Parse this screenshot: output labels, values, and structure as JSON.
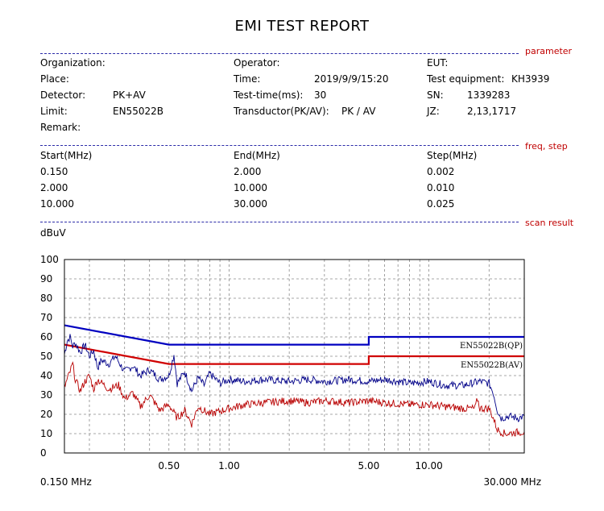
{
  "title": "EMI TEST REPORT",
  "sections": {
    "parameter": "parameter",
    "freq_step": "freq, step",
    "scan_result": "scan result"
  },
  "params": {
    "organization_label": "Organization:",
    "organization": "",
    "place_label": "Place:",
    "place": "",
    "detector_label": "Detector:",
    "detector": "PK+AV",
    "limit_label": "Limit:",
    "limit": "EN55022B",
    "remark_label": "Remark:",
    "remark": "",
    "operator_label": "Operator:",
    "operator": "",
    "time_label": "Time:",
    "time": "2019/9/9/15:20",
    "test_time_label": "Test-time(ms):",
    "test_time": "30",
    "transductor_label": "Transductor(PK/AV):",
    "transductor": "PK  /  AV",
    "eut_label": "EUT:",
    "eut": "",
    "equipment_label": "Test equipment:",
    "equipment": "KH3939",
    "sn_label": "SN:",
    "sn": "1339283",
    "jz_label": "JZ:",
    "jz": "2,13,1717"
  },
  "freq_table": {
    "headers": [
      "Start(MHz)",
      "End(MHz)",
      "Step(MHz)"
    ],
    "rows": [
      [
        "0.150",
        "2.000",
        "0.002"
      ],
      [
        "2.000",
        "10.000",
        "0.010"
      ],
      [
        "10.000",
        "30.000",
        "0.025"
      ]
    ]
  },
  "chart_data": {
    "type": "line",
    "ylabel": "dBuV",
    "ylim": [
      0,
      100
    ],
    "yticks": [
      "0",
      "10",
      "20",
      "30",
      "40",
      "50",
      "60",
      "70",
      "80",
      "90",
      "100"
    ],
    "xscale": "log",
    "xlim": [
      0.15,
      30
    ],
    "xtick_labels": [
      {
        "v": 0.5,
        "t": "0.50"
      },
      {
        "v": 1,
        "t": "1.00"
      },
      {
        "v": 5,
        "t": "5.00"
      },
      {
        "v": 10,
        "t": "10.00"
      }
    ],
    "x_start_label": "0.150 MHz",
    "x_end_label": "30.000 MHz",
    "grid": true,
    "colors": {
      "qp_limit": "#0000c0",
      "av_limit": "#d00000",
      "pk_trace": "#000088",
      "av_trace": "#b80000"
    },
    "limits": [
      {
        "name": "EN55022B(QP)",
        "points": [
          [
            0.15,
            66
          ],
          [
            0.5,
            56
          ],
          [
            5,
            56
          ],
          [
            5,
            60
          ],
          [
            30,
            60
          ]
        ]
      },
      {
        "name": "EN55022B(AV)",
        "points": [
          [
            0.15,
            56
          ],
          [
            0.5,
            46
          ],
          [
            5,
            46
          ],
          [
            5,
            50
          ],
          [
            30,
            50
          ]
        ]
      }
    ],
    "traces": [
      {
        "name": "PK",
        "points": [
          [
            0.15,
            51
          ],
          [
            0.155,
            58
          ],
          [
            0.16,
            60
          ],
          [
            0.165,
            55
          ],
          [
            0.17,
            57
          ],
          [
            0.18,
            52
          ],
          [
            0.19,
            56
          ],
          [
            0.2,
            50
          ],
          [
            0.21,
            53
          ],
          [
            0.22,
            44
          ],
          [
            0.23,
            48
          ],
          [
            0.25,
            46
          ],
          [
            0.27,
            50
          ],
          [
            0.3,
            42
          ],
          [
            0.33,
            45
          ],
          [
            0.36,
            40
          ],
          [
            0.4,
            43
          ],
          [
            0.45,
            38
          ],
          [
            0.5,
            40
          ],
          [
            0.53,
            51
          ],
          [
            0.55,
            36
          ],
          [
            0.6,
            42
          ],
          [
            0.65,
            32
          ],
          [
            0.7,
            39
          ],
          [
            0.75,
            35
          ],
          [
            0.8,
            41
          ],
          [
            0.9,
            36
          ],
          [
            1,
            38
          ],
          [
            1.2,
            37
          ],
          [
            1.5,
            38
          ],
          [
            2,
            37
          ],
          [
            2.5,
            38
          ],
          [
            3,
            37
          ],
          [
            4,
            38
          ],
          [
            5,
            37
          ],
          [
            6,
            38
          ],
          [
            7,
            37
          ],
          [
            8,
            36
          ],
          [
            10,
            37
          ],
          [
            12,
            35
          ],
          [
            15,
            35
          ],
          [
            18,
            37
          ],
          [
            20,
            36
          ],
          [
            21,
            31
          ],
          [
            22,
            22
          ],
          [
            23,
            18
          ],
          [
            25,
            19
          ],
          [
            28,
            18
          ],
          [
            30,
            19
          ]
        ]
      },
      {
        "name": "AV",
        "points": [
          [
            0.15,
            34
          ],
          [
            0.16,
            42
          ],
          [
            0.165,
            46
          ],
          [
            0.17,
            38
          ],
          [
            0.18,
            32
          ],
          [
            0.19,
            37
          ],
          [
            0.2,
            40
          ],
          [
            0.21,
            33
          ],
          [
            0.22,
            38
          ],
          [
            0.25,
            33
          ],
          [
            0.28,
            35
          ],
          [
            0.3,
            28
          ],
          [
            0.33,
            31
          ],
          [
            0.36,
            24
          ],
          [
            0.4,
            30
          ],
          [
            0.45,
            22
          ],
          [
            0.5,
            25
          ],
          [
            0.55,
            18
          ],
          [
            0.6,
            22
          ],
          [
            0.65,
            15
          ],
          [
            0.7,
            24
          ],
          [
            0.8,
            20
          ],
          [
            1,
            23
          ],
          [
            1.2,
            25
          ],
          [
            1.5,
            26
          ],
          [
            2,
            27
          ],
          [
            2.5,
            26
          ],
          [
            3,
            27
          ],
          [
            4,
            26
          ],
          [
            5,
            27
          ],
          [
            6,
            26
          ],
          [
            8,
            25
          ],
          [
            10,
            25
          ],
          [
            12,
            24
          ],
          [
            15,
            23
          ],
          [
            17,
            23
          ],
          [
            17.5,
            28
          ],
          [
            18,
            23
          ],
          [
            20,
            23
          ],
          [
            21,
            18
          ],
          [
            22,
            12
          ],
          [
            24,
            10
          ],
          [
            30,
            11
          ]
        ]
      }
    ]
  }
}
